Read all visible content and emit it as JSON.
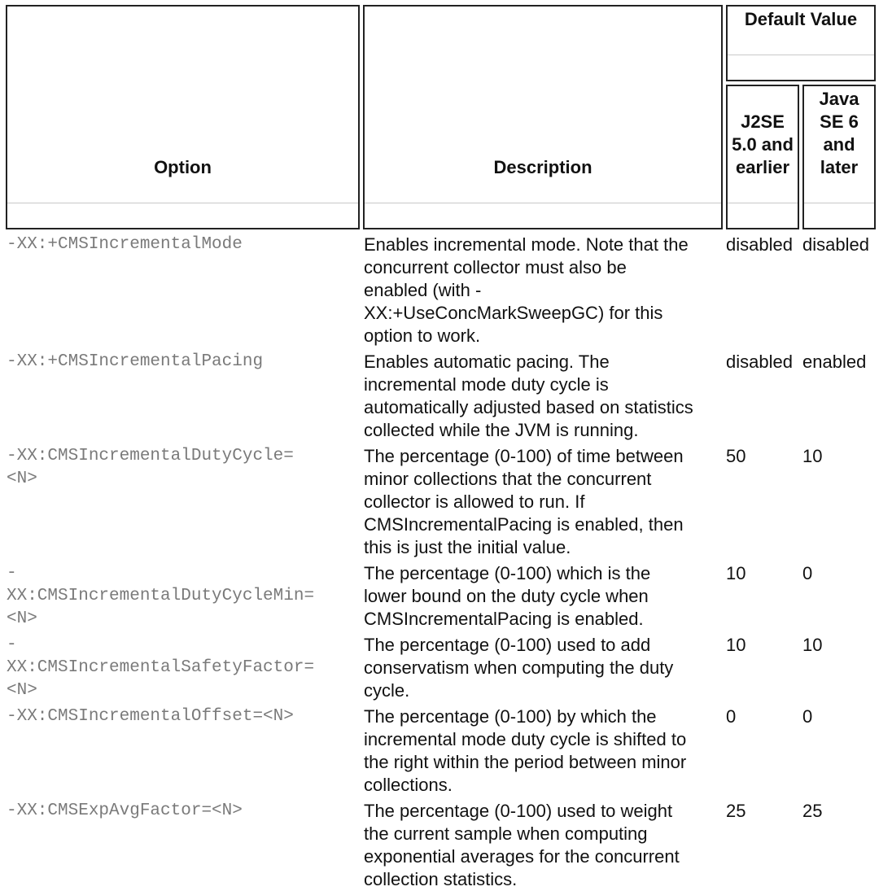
{
  "headers": {
    "option": "Option",
    "description": "Description",
    "default_value": "Default Value",
    "col_j2se": "J2SE\n5.0 and\nearlier",
    "col_java6": "Java\nSE 6\nand\nlater"
  },
  "rows": [
    {
      "option": "-XX:+CMSIncrementalMode",
      "description": "Enables incremental mode. Note that the\nconcurrent collector must also be\nenabled (with -\nXX:+UseConcMarkSweepGC) for this\noption to work.",
      "j2se": "disabled",
      "java6": "disabled"
    },
    {
      "option": "-XX:+CMSIncrementalPacing",
      "description": "Enables automatic pacing. The\nincremental mode duty cycle is\nautomatically adjusted based on statistics\ncollected while the JVM is running.",
      "j2se": "disabled",
      "java6": "enabled"
    },
    {
      "option": "-XX:CMSIncrementalDutyCycle=\n<N>",
      "description": "The percentage (0-100) of time between\nminor collections that the concurrent\ncollector is allowed to run. If\nCMSIncrementalPacing is enabled, then\nthis is just the initial value.",
      "j2se": "50",
      "java6": "10"
    },
    {
      "option": "-\nXX:CMSIncrementalDutyCycleMin=\n<N>",
      "description": "The percentage (0-100) which is the\nlower bound on the duty cycle when\nCMSIncrementalPacing is enabled.",
      "j2se": "10",
      "java6": "0"
    },
    {
      "option": "-\nXX:CMSIncrementalSafetyFactor=\n<N>",
      "description": "The percentage (0-100) used to add\nconservatism when computing the duty\ncycle.",
      "j2se": "10",
      "java6": "10"
    },
    {
      "option": "-XX:CMSIncrementalOffset=<N>",
      "description": "The percentage (0-100) by which the\nincremental mode duty cycle is shifted to\nthe right within the period between minor\ncollections.",
      "j2se": "0",
      "java6": "0"
    },
    {
      "option": "-XX:CMSExpAvgFactor=<N>",
      "description": "The percentage (0-100) used to weight\nthe current sample when computing\nexponential averages for the concurrent\ncollection statistics.",
      "j2se": "25",
      "java6": "25"
    }
  ]
}
